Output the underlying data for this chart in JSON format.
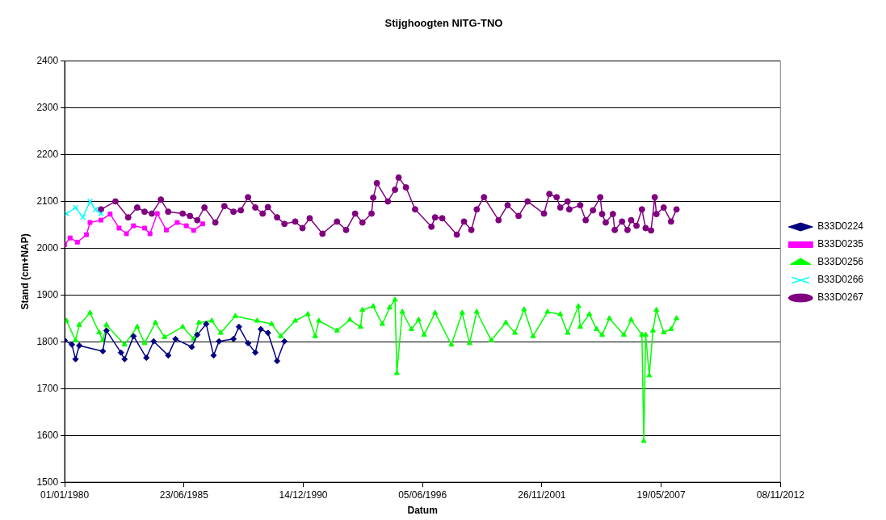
{
  "chart_data": {
    "type": "line",
    "title": "Stijghoogten NITG-TNO",
    "xlabel": "Datum",
    "ylabel": "Stand (cm+NAP)",
    "xlim": [
      "1980-01-01",
      "2012-11-08"
    ],
    "xticks": [
      {
        "value": "1980-01-01",
        "label": "01/01/1980"
      },
      {
        "value": "1985-06-23",
        "label": "23/06/1985"
      },
      {
        "value": "1990-12-14",
        "label": "14/12/1990"
      },
      {
        "value": "1996-06-05",
        "label": "05/06/1996"
      },
      {
        "value": "2001-11-26",
        "label": "26/11/2001"
      },
      {
        "value": "2007-05-19",
        "label": "19/05/2007"
      },
      {
        "value": "2012-11-08",
        "label": "08/11/2012"
      }
    ],
    "ylim": [
      1500,
      2400
    ],
    "yticks": [
      1500,
      1600,
      1700,
      1800,
      1900,
      2000,
      2100,
      2200,
      2300,
      2400
    ],
    "grid": "y",
    "legend": "right",
    "line_style": "solid",
    "series": [
      {
        "name": "B33D0224",
        "color": "#000080",
        "marker": "diamond",
        "x": [
          "1980-01",
          "1980-05",
          "1980-07",
          "1980-09",
          "1981-10",
          "1981-12",
          "1982-08",
          "1982-10",
          "1983-03",
          "1983-10",
          "1984-02",
          "1984-10",
          "1985-02",
          "1985-11",
          "1986-02",
          "1986-07",
          "1986-11",
          "1987-02",
          "1987-10",
          "1988-01",
          "1988-06",
          "1988-10",
          "1989-01",
          "1989-05",
          "1989-10",
          "1990-02"
        ],
        "values": [
          1803,
          1794,
          1763,
          1792,
          1780,
          1824,
          1777,
          1763,
          1812,
          1766,
          1801,
          1771,
          1806,
          1789,
          1815,
          1838,
          1771,
          1801,
          1806,
          1832,
          1797,
          1777,
          1827,
          1819,
          1759,
          1801
        ]
      },
      {
        "name": "B33D0235",
        "color": "#ff00ff",
        "marker": "square",
        "x": [
          "1980-01",
          "1980-04",
          "1980-08",
          "1981-01",
          "1981-03",
          "1981-09",
          "1982-02",
          "1982-07",
          "1982-11",
          "1983-03",
          "1983-09",
          "1983-12",
          "1984-04",
          "1984-09",
          "1985-03",
          "1985-08",
          "1985-12",
          "1986-05"
        ],
        "values": [
          2008,
          2022,
          2013,
          2029,
          2055,
          2060,
          2073,
          2043,
          2031,
          2048,
          2043,
          2031,
          2074,
          2039,
          2055,
          2048,
          2038,
          2052
        ]
      },
      {
        "name": "B33D0256",
        "color": "#00ff00",
        "marker": "triangle",
        "x": [
          "1980-02",
          "1980-07",
          "1980-09",
          "1981-03",
          "1981-08",
          "1981-10",
          "1981-12",
          "1982-10",
          "1983-05",
          "1983-09",
          "1984-03",
          "1984-08",
          "1985-06",
          "1985-12",
          "1986-03",
          "1986-10",
          "1987-03",
          "1987-11",
          "1988-11",
          "1989-07",
          "1989-12",
          "1990-08",
          "1991-03",
          "1991-07",
          "1991-09",
          "1992-07",
          "1993-02",
          "1993-08",
          "1993-09",
          "1994-03",
          "1994-08",
          "1994-12",
          "1995-03",
          "1995-04",
          "1995-07",
          "1995-12",
          "1996-04",
          "1996-07",
          "1997-01",
          "1997-10",
          "1998-04",
          "1998-08",
          "1998-12",
          "1999-08",
          "2000-04",
          "2000-09",
          "2001-02",
          "2001-07",
          "2002-03",
          "2002-10",
          "2003-02",
          "2003-08",
          "2003-09",
          "2004-02",
          "2004-06",
          "2004-09",
          "2005-01",
          "2005-09",
          "2006-01",
          "2006-07",
          "2006-08",
          "2006-09",
          "2006-11",
          "2007-01",
          "2007-03",
          "2007-07",
          "2007-11",
          "2008-02"
        ],
        "values": [
          1845,
          1803,
          1836,
          1862,
          1820,
          1803,
          1836,
          1794,
          1832,
          1797,
          1841,
          1810,
          1832,
          1806,
          1841,
          1845,
          1819,
          1855,
          1845,
          1838,
          1812,
          1845,
          1859,
          1812,
          1845,
          1824,
          1847,
          1832,
          1868,
          1876,
          1838,
          1873,
          1890,
          1733,
          1864,
          1827,
          1847,
          1815,
          1862,
          1794,
          1862,
          1797,
          1864,
          1803,
          1841,
          1819,
          1869,
          1812,
          1864,
          1859,
          1819,
          1876,
          1832,
          1859,
          1827,
          1815,
          1850,
          1815,
          1847,
          1815,
          1588,
          1815,
          1728,
          1824,
          1868,
          1820,
          1827,
          1850
        ]
      },
      {
        "name": "B33D0266",
        "color": "#00ffff",
        "marker": "cross",
        "x": [
          "1980-02",
          "1980-07",
          "1980-11",
          "1981-03",
          "1981-06",
          "1981-09"
        ],
        "values": [
          2074,
          2087,
          2066,
          2100,
          2083,
          2074
        ]
      },
      {
        "name": "B33D0267",
        "color": "#800080",
        "marker": "circle",
        "x": [
          "1981-09",
          "1982-05",
          "1982-12",
          "1983-05",
          "1983-09",
          "1984-01",
          "1984-06",
          "1984-10",
          "1985-06",
          "1985-10",
          "1986-02",
          "1986-06",
          "1986-12",
          "1987-05",
          "1987-10",
          "1988-02",
          "1988-06",
          "1988-10",
          "1989-02",
          "1989-05",
          "1989-10",
          "1990-02",
          "1990-08",
          "1990-12",
          "1991-04",
          "1991-11",
          "1992-07",
          "1992-12",
          "1993-05",
          "1993-09",
          "1994-02",
          "1994-03",
          "1994-05",
          "1994-11",
          "1995-03",
          "1995-05",
          "1995-09",
          "1996-02",
          "1996-11",
          "1997-01",
          "1997-05",
          "1998-01",
          "1998-05",
          "1998-09",
          "1998-12",
          "1999-04",
          "1999-12",
          "2000-05",
          "2000-11",
          "2001-04",
          "2002-01",
          "2002-04",
          "2002-08",
          "2002-10",
          "2003-02",
          "2003-03",
          "2003-09",
          "2003-12",
          "2004-04",
          "2004-08",
          "2004-09",
          "2004-11",
          "2005-03",
          "2005-04",
          "2005-08",
          "2005-11",
          "2006-01",
          "2006-04",
          "2006-07",
          "2006-09",
          "2006-12",
          "2007-02",
          "2007-03",
          "2007-07",
          "2007-11",
          "2008-02"
        ],
        "values": [
          2083,
          2100,
          2066,
          2087,
          2078,
          2074,
          2104,
          2078,
          2074,
          2069,
          2060,
          2087,
          2055,
          2090,
          2078,
          2081,
          2109,
          2087,
          2074,
          2088,
          2066,
          2052,
          2057,
          2043,
          2064,
          2031,
          2057,
          2039,
          2074,
          2055,
          2074,
          2108,
          2139,
          2100,
          2125,
          2151,
          2130,
          2083,
          2046,
          2066,
          2064,
          2029,
          2057,
          2039,
          2083,
          2109,
          2060,
          2092,
          2069,
          2100,
          2074,
          2116,
          2109,
          2087,
          2100,
          2083,
          2092,
          2060,
          2081,
          2109,
          2073,
          2055,
          2073,
          2039,
          2057,
          2039,
          2060,
          2048,
          2083,
          2043,
          2038,
          2109,
          2073,
          2087,
          2057,
          2083
        ]
      }
    ]
  }
}
